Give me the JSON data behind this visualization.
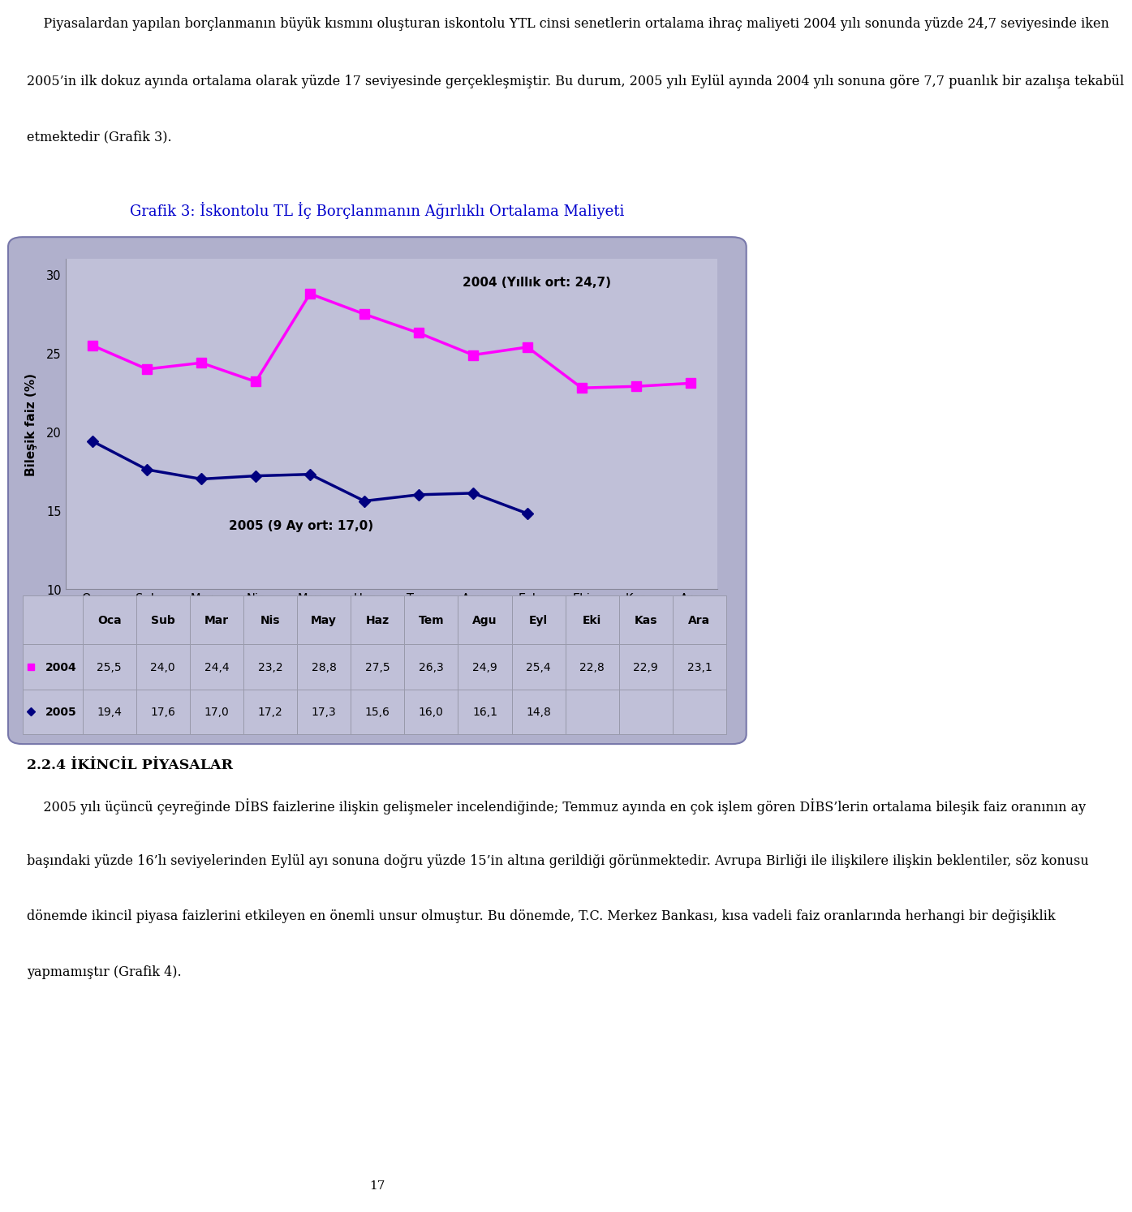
{
  "title": "Grafik 3: İskontolu TL İç Borçlanmanın Ağırlıklı Ortalama Maliyeti",
  "title_color": "#0000CC",
  "ylabel": "Bileşik faiz (%)",
  "months": [
    "Oca",
    "Sub",
    "Mar",
    "Nis",
    "May",
    "Haz",
    "Tem",
    "Agu",
    "Eyl",
    "Eki",
    "Kas",
    "Ara"
  ],
  "data_2004": [
    25.5,
    24.0,
    24.4,
    23.2,
    28.8,
    27.5,
    26.3,
    24.9,
    25.4,
    22.8,
    22.9,
    23.1
  ],
  "data_2005": [
    19.4,
    17.6,
    17.0,
    17.2,
    17.3,
    15.6,
    16.0,
    16.1,
    14.8,
    null,
    null,
    null
  ],
  "color_2004": "#FF00FF",
  "color_2005": "#000080",
  "label_2004": "2004 (Yıllık ort: 24,7)",
  "label_2005": "2005 (9 Ay ort: 17,0)",
  "ylim_min": 10,
  "ylim_max": 31,
  "yticks": [
    10,
    15,
    20,
    25,
    30
  ],
  "table_header": [
    "",
    "Oca",
    "Sub",
    "Mar",
    "Nis",
    "May",
    "Haz",
    "Tem",
    "Agu",
    "Eyl",
    "Eki",
    "Kas",
    "Ara"
  ],
  "table_row_2004": [
    "2004",
    "25,5",
    "24,0",
    "24,4",
    "23,2",
    "28,8",
    "27,5",
    "26,3",
    "24,9",
    "25,4",
    "22,8",
    "22,9",
    "23,1"
  ],
  "table_row_2005": [
    "2005",
    "19,4",
    "17,6",
    "17,0",
    "17,2",
    "17,3",
    "15,6",
    "16,0",
    "16,1",
    "14,8",
    "",
    "",
    ""
  ],
  "section_title": "2.2.4 İKİNCİL PİYASALAR",
  "page_number": "17",
  "top_text_lines": [
    "    Piyasalardan yapılan borçlanmanın büyük kısmını oluşturan iskontolu YTL cinsi senetlerin ortalama ihraç maliyeti 2004 yılı sonunda yüzde 24,7 seviyesinde iken",
    "2005’in ilk dokuz ayında ortalama olarak yüzde 17 seviyesinde gerçekleşmiştir. Bu durum, 2005 yılı Eylül ayında 2004 yılı sonuna göre 7,7 puanlık bir azalışa tekabül",
    "etmektedir (Grafik 3)."
  ],
  "bottom_text_lines": [
    "    2005 yılı üçüncü çeyreğinde DİBS faizlerine ilişkin gelişmeler incelendiğinde; Temmuz ayında en çok işlem gören DİBS’lerin ortalama bileşik faiz oranının ay",
    "başındaki yüzde 16’lı seviyelerinden Eylül ayı sonuna doğru yüzde 15’in altına gerildiği görünmektedir. Avrupa Birliği ile ilişkilere ilişkin beklentiler, söz konusu",
    "dönemde ikincil piyasa faizlerini etkileyen en önemli unsur olmuştur. Bu dönemde, T.C. Merkez Bankası, kısa vadeli faiz oranlarında herhangi bir değişiklik",
    "yapmamıştır (Grafik 4)."
  ]
}
